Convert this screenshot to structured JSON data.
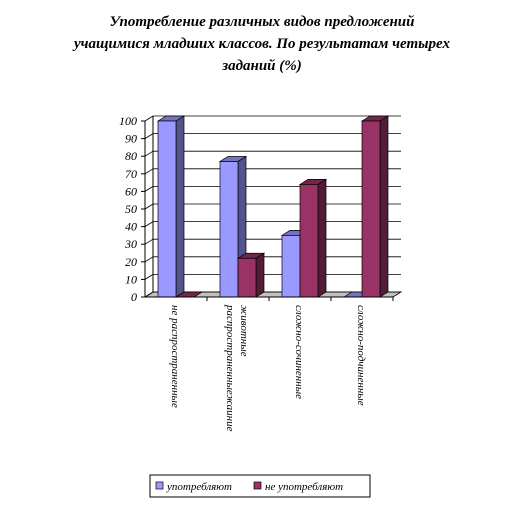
{
  "chart_data": {
    "type": "bar3d",
    "title": [
      "Употребление различных видов предложений",
      "учащимися младших классов. По результатам четырех",
      "заданий (%)"
    ],
    "categories": [
      [
        "не распространенные"
      ],
      [
        "распространенныежаиние",
        "животные"
      ],
      [
        "сложно-сочиненные"
      ],
      [
        "сложно-подчиненные"
      ]
    ],
    "series": [
      {
        "name": "употребляют",
        "color": "#9999ff",
        "values": [
          100,
          77,
          35,
          0
        ]
      },
      {
        "name": "не употребляют",
        "color": "#993366",
        "values": [
          0,
          22,
          64,
          100
        ]
      }
    ],
    "ylim": [
      0,
      100
    ],
    "yticks": [
      0,
      10,
      20,
      30,
      40,
      50,
      60,
      70,
      80,
      90,
      100
    ],
    "grid": true
  }
}
